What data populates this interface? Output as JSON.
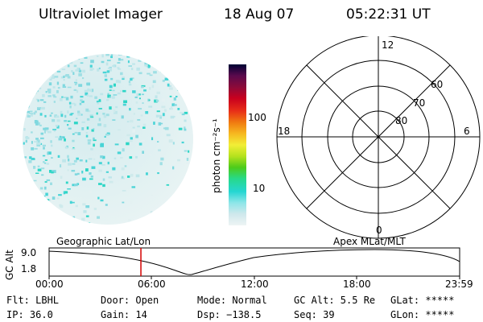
{
  "header": {
    "title": "Ultraviolet Imager",
    "date": "18 Aug 07",
    "time": "05:22:31 UT"
  },
  "colorbar": {
    "label": "photon cm⁻²s⁻¹",
    "ticks": [
      "100",
      "10"
    ],
    "scale": "log",
    "colors": [
      "#000033",
      "#5a0a4d",
      "#8b0a3a",
      "#c8001e",
      "#e83018",
      "#f07a10",
      "#f6b820",
      "#f2ee36",
      "#b6e21e",
      "#4ccb1a",
      "#27d98a",
      "#25d6d2",
      "#8ee6e8",
      "#cfe8ec",
      "#eef4f4"
    ]
  },
  "polar_grid": {
    "mlt_labels": [
      "12",
      "18",
      "6",
      "0"
    ],
    "lat_labels": [
      "60",
      "70",
      "80"
    ]
  },
  "timeline": {
    "y_label": "GC Alt",
    "y_ticks": [
      "9.0",
      "1.8"
    ],
    "left_title": "Geographic Lat/Lon",
    "right_title": "Apex MLat/MLT",
    "x_ticks": [
      "00:00",
      "06:00",
      "12:00",
      "18:00",
      "23:59"
    ],
    "current_time": "05:22",
    "marker_color": "#d40000"
  },
  "info": {
    "filter": "Flt: LBHL",
    "ip": "IP: 36.0",
    "door": "Door: Open",
    "gain": "Gain: 14",
    "mode": "Mode: Normal",
    "dsp": "Dsp: −138.5",
    "gc_alt": "GC Alt: 5.5 Re",
    "seq": "Seq: 39",
    "glat": "GLat: *****",
    "glon": "GLon: *****"
  }
}
